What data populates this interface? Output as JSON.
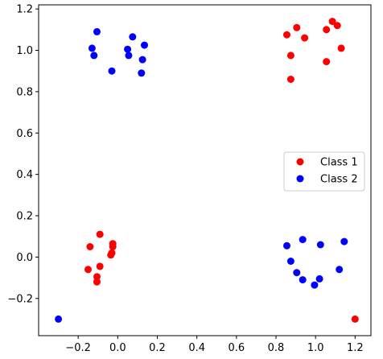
{
  "chart_data": {
    "type": "scatter",
    "title": "",
    "xlabel": "",
    "ylabel": "",
    "xlim": [
      -0.4,
      1.28
    ],
    "ylim": [
      -0.38,
      1.22
    ],
    "xticks": [
      -0.2,
      0.0,
      0.2,
      0.4,
      0.6,
      0.8,
      1.0,
      1.2
    ],
    "xtick_labels": [
      "−0.2",
      "0.0",
      "0.2",
      "0.4",
      "0.6",
      "0.8",
      "1.0",
      "1.2"
    ],
    "yticks": [
      -0.2,
      0.0,
      0.2,
      0.4,
      0.6,
      0.8,
      1.0,
      1.2
    ],
    "ytick_labels": [
      "−0.2",
      "0.0",
      "0.2",
      "0.4",
      "0.6",
      "0.8",
      "1.0",
      "1.2"
    ],
    "grid": false,
    "legend_position": "center-right",
    "series": [
      {
        "name": "Class 1",
        "color": "#ff0000",
        "points": [
          {
            "x": -0.09,
            "y": 0.11
          },
          {
            "x": -0.14,
            "y": 0.05
          },
          {
            "x": -0.025,
            "y": 0.065
          },
          {
            "x": -0.025,
            "y": 0.05
          },
          {
            "x": -0.035,
            "y": 0.01
          },
          {
            "x": -0.03,
            "y": 0.02
          },
          {
            "x": -0.09,
            "y": -0.045
          },
          {
            "x": -0.15,
            "y": -0.06
          },
          {
            "x": -0.105,
            "y": -0.095
          },
          {
            "x": -0.105,
            "y": -0.12
          },
          {
            "x": 0.855,
            "y": 1.075
          },
          {
            "x": 0.905,
            "y": 1.11
          },
          {
            "x": 0.945,
            "y": 1.06
          },
          {
            "x": 0.875,
            "y": 0.975
          },
          {
            "x": 0.875,
            "y": 0.86
          },
          {
            "x": 1.055,
            "y": 1.1
          },
          {
            "x": 1.085,
            "y": 1.14
          },
          {
            "x": 1.11,
            "y": 1.12
          },
          {
            "x": 1.13,
            "y": 1.01
          },
          {
            "x": 1.055,
            "y": 0.945
          },
          {
            "x": 1.2,
            "y": -0.3
          }
        ]
      },
      {
        "name": "Class 2",
        "color": "#0000ff",
        "points": [
          {
            "x": -0.105,
            "y": 1.09
          },
          {
            "x": -0.13,
            "y": 1.01
          },
          {
            "x": -0.12,
            "y": 0.975
          },
          {
            "x": -0.03,
            "y": 0.9
          },
          {
            "x": 0.075,
            "y": 1.065
          },
          {
            "x": 0.05,
            "y": 1.005
          },
          {
            "x": 0.055,
            "y": 0.975
          },
          {
            "x": 0.135,
            "y": 1.025
          },
          {
            "x": 0.125,
            "y": 0.955
          },
          {
            "x": 0.12,
            "y": 0.89
          },
          {
            "x": 0.855,
            "y": 0.055
          },
          {
            "x": 0.935,
            "y": 0.085
          },
          {
            "x": 1.025,
            "y": 0.06
          },
          {
            "x": 1.145,
            "y": 0.075
          },
          {
            "x": 0.875,
            "y": -0.02
          },
          {
            "x": 0.905,
            "y": -0.075
          },
          {
            "x": 0.935,
            "y": -0.11
          },
          {
            "x": 0.995,
            "y": -0.135
          },
          {
            "x": 1.02,
            "y": -0.105
          },
          {
            "x": 1.12,
            "y": -0.06
          },
          {
            "x": -0.3,
            "y": -0.3
          }
        ]
      }
    ]
  }
}
